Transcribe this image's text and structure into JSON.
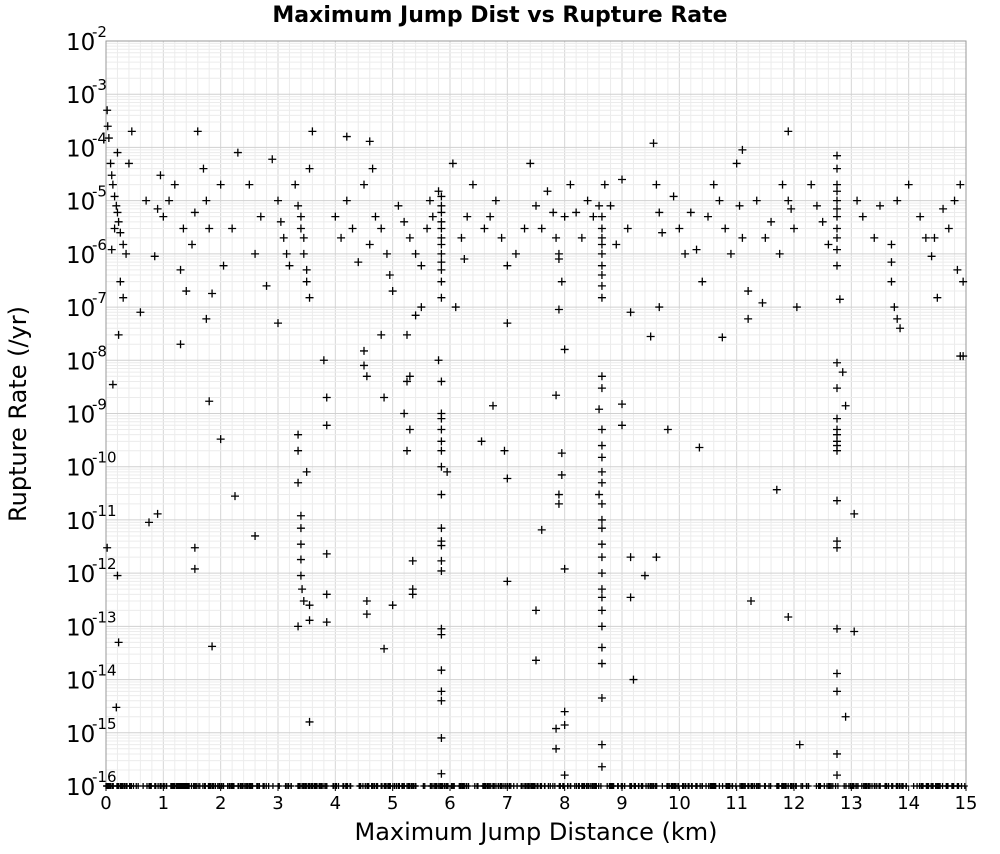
{
  "chart_data": {
    "type": "scatter",
    "title": "Maximum Jump Dist vs Rupture Rate",
    "xlabel": "Maximum Jump Distance (km)",
    "ylabel": "Rupture Rate (/yr)",
    "xlim": [
      0,
      15
    ],
    "ylim": [
      1e-16,
      0.01
    ],
    "yscale": "log",
    "grid": true,
    "marker": "plus",
    "x_ticks": [
      "0",
      "1",
      "2",
      "3",
      "4",
      "5",
      "6",
      "7",
      "8",
      "9",
      "10",
      "11",
      "12",
      "13",
      "14",
      "15"
    ],
    "y_tick_mantissa": "10",
    "y_tick_exponents": [
      "-16",
      "-15",
      "-14",
      "-13",
      "-12",
      "-11",
      "-10",
      "-9",
      "-8",
      "-7",
      "-6",
      "-5",
      "-4",
      "-3",
      "-2"
    ],
    "points": [
      [
        0.02,
        0.0005
      ],
      [
        0.03,
        0.00025
      ],
      [
        0.05,
        0.00015
      ],
      [
        0.08,
        5e-05
      ],
      [
        0.1,
        3e-05
      ],
      [
        0.12,
        2e-05
      ],
      [
        0.15,
        1.2e-05
      ],
      [
        0.18,
        8e-06
      ],
      [
        0.2,
        6e-06
      ],
      [
        0.22,
        4e-06
      ],
      [
        0.25,
        2.5e-06
      ],
      [
        0.3,
        1.5e-06
      ],
      [
        0.35,
        1e-06
      ],
      [
        0.4,
        5e-05
      ],
      [
        0.15,
        3e-06
      ],
      [
        0.1,
        1.2e-06
      ],
      [
        0.2,
        8e-05
      ],
      [
        0.25,
        3e-07
      ],
      [
        0.3,
        1.5e-07
      ],
      [
        0.22,
        3e-08
      ],
      [
        0.12,
        3.5e-09
      ],
      [
        0.2,
        9e-13
      ],
      [
        0.22,
        5e-14
      ],
      [
        0.18,
        3e-15
      ],
      [
        0.02,
        3e-12
      ],
      [
        0.45,
        0.0002
      ],
      [
        0.6,
        8e-08
      ],
      [
        0.7,
        1e-05
      ],
      [
        0.85,
        9e-07
      ],
      [
        0.9,
        7e-06
      ],
      [
        0.95,
        3e-05
      ],
      [
        1.0,
        5e-06
      ],
      [
        1.1,
        1e-05
      ],
      [
        1.2,
        2e-05
      ],
      [
        1.3,
        5e-07
      ],
      [
        1.35,
        3e-06
      ],
      [
        1.4,
        2e-07
      ],
      [
        1.5,
        1.5e-06
      ],
      [
        1.55,
        6e-06
      ],
      [
        1.6,
        0.0002
      ],
      [
        1.7,
        4e-05
      ],
      [
        1.75,
        1e-05
      ],
      [
        1.8,
        3e-06
      ],
      [
        1.85,
        1.8e-07
      ],
      [
        1.75,
        6e-08
      ],
      [
        1.3,
        2e-08
      ],
      [
        1.8,
        1.7e-09
      ],
      [
        2.0,
        3.3e-10
      ],
      [
        2.25,
        2.8e-11
      ],
      [
        2.6,
        5e-12
      ],
      [
        0.75,
        9e-12
      ],
      [
        0.9,
        1.3e-11
      ],
      [
        1.55,
        3e-12
      ],
      [
        1.55,
        1.2e-12
      ],
      [
        1.85,
        4.2e-14
      ],
      [
        2.0,
        2e-05
      ],
      [
        2.05,
        6e-07
      ],
      [
        2.2,
        3e-06
      ],
      [
        2.3,
        8e-05
      ],
      [
        2.5,
        2e-05
      ],
      [
        2.6,
        1e-06
      ],
      [
        2.7,
        5e-06
      ],
      [
        2.8,
        2.5e-07
      ],
      [
        2.9,
        6e-05
      ],
      [
        3.0,
        1e-05
      ],
      [
        3.05,
        4e-06
      ],
      [
        3.1,
        2e-06
      ],
      [
        3.15,
        1e-06
      ],
      [
        3.2,
        6e-07
      ],
      [
        3.3,
        2e-05
      ],
      [
        3.35,
        8e-06
      ],
      [
        3.4,
        5e-06
      ],
      [
        3.4,
        3e-06
      ],
      [
        3.45,
        2e-06
      ],
      [
        3.45,
        1e-06
      ],
      [
        3.5,
        5e-07
      ],
      [
        3.5,
        3e-07
      ],
      [
        3.55,
        1.5e-07
      ],
      [
        3.55,
        4e-05
      ],
      [
        3.6,
        0.0002
      ],
      [
        3.0,
        5e-08
      ],
      [
        3.35,
        4e-10
      ],
      [
        3.35,
        2e-10
      ],
      [
        3.35,
        5e-11
      ],
      [
        3.4,
        1.2e-11
      ],
      [
        3.4,
        7e-12
      ],
      [
        3.4,
        3.5e-12
      ],
      [
        3.4,
        1.8e-12
      ],
      [
        3.4,
        9e-13
      ],
      [
        3.42,
        5e-13
      ],
      [
        3.45,
        3e-13
      ],
      [
        3.35,
        1e-13
      ],
      [
        3.5,
        8e-11
      ],
      [
        3.55,
        2.5e-13
      ],
      [
        3.55,
        1.3e-13
      ],
      [
        3.55,
        1.6e-15
      ],
      [
        3.8,
        1e-08
      ],
      [
        3.85,
        2e-09
      ],
      [
        3.85,
        6e-10
      ],
      [
        3.85,
        2.3e-12
      ],
      [
        3.85,
        4e-13
      ],
      [
        3.85,
        1.2e-13
      ],
      [
        4.0,
        5e-06
      ],
      [
        4.1,
        2e-06
      ],
      [
        4.2,
        1e-05
      ],
      [
        4.3,
        3e-06
      ],
      [
        4.4,
        7e-07
      ],
      [
        4.5,
        2e-05
      ],
      [
        4.6,
        1.5e-06
      ],
      [
        4.7,
        5e-06
      ],
      [
        4.8,
        3e-06
      ],
      [
        4.9,
        1e-06
      ],
      [
        4.95,
        4e-07
      ],
      [
        5.0,
        2e-07
      ],
      [
        4.2,
        0.00016
      ],
      [
        4.6,
        0.00013
      ],
      [
        4.65,
        4e-05
      ],
      [
        4.5,
        1.5e-08
      ],
      [
        4.5,
        8e-09
      ],
      [
        4.55,
        5e-09
      ],
      [
        4.8,
        3e-08
      ],
      [
        4.85,
        2e-09
      ],
      [
        5.0,
        2.5e-13
      ],
      [
        4.55,
        3e-13
      ],
      [
        4.55,
        1.7e-13
      ],
      [
        4.85,
        3.8e-14
      ],
      [
        5.1,
        8e-06
      ],
      [
        5.2,
        4e-06
      ],
      [
        5.3,
        2e-06
      ],
      [
        5.4,
        1e-06
      ],
      [
        5.5,
        6e-07
      ],
      [
        5.6,
        3e-06
      ],
      [
        5.65,
        1e-05
      ],
      [
        5.7,
        5e-06
      ],
      [
        5.2,
        1e-09
      ],
      [
        5.25,
        4e-09
      ],
      [
        5.3,
        5e-09
      ],
      [
        5.25,
        2e-10
      ],
      [
        5.3,
        5e-10
      ],
      [
        5.35,
        1.7e-12
      ],
      [
        5.35,
        5e-13
      ],
      [
        5.35,
        4e-13
      ],
      [
        5.25,
        3e-08
      ],
      [
        5.4,
        7e-08
      ],
      [
        5.5,
        1e-07
      ],
      [
        5.8,
        1.5e-05
      ],
      [
        5.85,
        1.2e-05
      ],
      [
        5.85,
        8e-06
      ],
      [
        5.85,
        6e-06
      ],
      [
        5.85,
        4e-06
      ],
      [
        5.85,
        3e-06
      ],
      [
        5.85,
        2e-06
      ],
      [
        5.85,
        1.5e-06
      ],
      [
        5.85,
        1e-06
      ],
      [
        5.85,
        7e-07
      ],
      [
        5.85,
        5e-07
      ],
      [
        5.85,
        3e-07
      ],
      [
        5.85,
        1.5e-07
      ],
      [
        5.8,
        1e-08
      ],
      [
        5.85,
        4e-09
      ],
      [
        5.85,
        1e-09
      ],
      [
        5.85,
        8e-10
      ],
      [
        5.85,
        5e-10
      ],
      [
        5.85,
        3e-10
      ],
      [
        5.85,
        2e-10
      ],
      [
        5.85,
        1e-10
      ],
      [
        5.85,
        3e-11
      ],
      [
        5.85,
        7e-12
      ],
      [
        5.85,
        4e-12
      ],
      [
        5.85,
        3.3e-12
      ],
      [
        5.85,
        1.7e-12
      ],
      [
        5.85,
        1.1e-12
      ],
      [
        5.85,
        9e-14
      ],
      [
        5.85,
        7e-14
      ],
      [
        5.85,
        1.5e-14
      ],
      [
        5.85,
        6e-15
      ],
      [
        5.85,
        4e-15
      ],
      [
        5.85,
        8e-16
      ],
      [
        5.85,
        1.7e-16
      ],
      [
        5.95,
        8e-11
      ],
      [
        6.05,
        5e-05
      ],
      [
        6.2,
        2e-06
      ],
      [
        6.3,
        5e-06
      ],
      [
        6.4,
        2e-05
      ],
      [
        6.6,
        3e-06
      ],
      [
        6.7,
        5e-06
      ],
      [
        6.8,
        1e-05
      ],
      [
        6.9,
        2e-06
      ],
      [
        7.0,
        6e-07
      ],
      [
        6.1,
        1e-07
      ],
      [
        6.25,
        8e-07
      ],
      [
        7.0,
        5e-08
      ],
      [
        6.55,
        3e-10
      ],
      [
        6.75,
        1.4e-09
      ],
      [
        6.95,
        2e-10
      ],
      [
        7.0,
        6e-11
      ],
      [
        7.0,
        7e-13
      ],
      [
        7.15,
        1e-06
      ],
      [
        7.3,
        3e-06
      ],
      [
        7.4,
        5e-05
      ],
      [
        7.5,
        8e-06
      ],
      [
        7.6,
        3e-06
      ],
      [
        7.7,
        1.5e-05
      ],
      [
        7.8,
        6e-06
      ],
      [
        7.85,
        2e-06
      ],
      [
        7.9,
        1e-06
      ],
      [
        7.95,
        3e-07
      ],
      [
        8.0,
        5e-06
      ],
      [
        7.5,
        2e-13
      ],
      [
        7.5,
        2.3e-14
      ],
      [
        7.6,
        6.5e-12
      ],
      [
        7.85,
        2.2e-09
      ],
      [
        7.9,
        8e-07
      ],
      [
        7.9,
        9e-08
      ],
      [
        7.9,
        3e-11
      ],
      [
        7.9,
        2e-11
      ],
      [
        7.95,
        1.8e-10
      ],
      [
        7.95,
        7e-11
      ],
      [
        8.0,
        1.6e-08
      ],
      [
        8.0,
        1.2e-12
      ],
      [
        8.0,
        2.5e-15
      ],
      [
        8.0,
        1.4e-15
      ],
      [
        7.85,
        1.2e-15
      ],
      [
        7.85,
        5e-16
      ],
      [
        8.0,
        1.6e-16
      ],
      [
        8.1,
        2e-05
      ],
      [
        8.2,
        6e-06
      ],
      [
        8.3,
        2e-06
      ],
      [
        8.4,
        1e-05
      ],
      [
        8.5,
        5e-06
      ],
      [
        8.6,
        8e-06
      ],
      [
        8.65,
        5e-06
      ],
      [
        8.65,
        3e-06
      ],
      [
        8.65,
        2e-06
      ],
      [
        8.65,
        1.5e-06
      ],
      [
        8.65,
        1e-06
      ],
      [
        8.65,
        6e-07
      ],
      [
        8.65,
        4e-07
      ],
      [
        8.65,
        2.5e-07
      ],
      [
        8.65,
        1.5e-07
      ],
      [
        8.65,
        5e-09
      ],
      [
        8.65,
        3e-09
      ],
      [
        8.6,
        1.2e-09
      ],
      [
        8.65,
        2.5e-10
      ],
      [
        8.65,
        1.5e-10
      ],
      [
        8.65,
        5e-10
      ],
      [
        8.65,
        8e-11
      ],
      [
        8.65,
        5e-11
      ],
      [
        8.65,
        2e-11
      ],
      [
        8.65,
        1e-11
      ],
      [
        8.65,
        7e-12
      ],
      [
        8.65,
        3.5e-12
      ],
      [
        8.65,
        2e-12
      ],
      [
        8.65,
        1e-12
      ],
      [
        8.65,
        5e-13
      ],
      [
        8.65,
        3.5e-13
      ],
      [
        8.65,
        2e-13
      ],
      [
        8.65,
        1e-13
      ],
      [
        8.65,
        4e-14
      ],
      [
        8.65,
        2e-14
      ],
      [
        8.65,
        4.5e-15
      ],
      [
        8.65,
        6e-16
      ],
      [
        8.65,
        2.3e-16
      ],
      [
        8.6,
        3e-11
      ],
      [
        8.7,
        2e-05
      ],
      [
        8.8,
        8e-06
      ],
      [
        8.9,
        1.5e-06
      ],
      [
        9.0,
        2.5e-05
      ],
      [
        9.1,
        3e-06
      ],
      [
        9.15,
        8e-08
      ],
      [
        9.0,
        1.5e-09
      ],
      [
        9.0,
        6e-10
      ],
      [
        9.15,
        2e-12
      ],
      [
        9.15,
        3.5e-13
      ],
      [
        9.2,
        1e-14
      ],
      [
        9.4,
        9e-13
      ],
      [
        9.5,
        2.8e-08
      ],
      [
        9.55,
        0.00012
      ],
      [
        9.6,
        2e-05
      ],
      [
        9.65,
        6e-06
      ],
      [
        9.7,
        2.5e-06
      ],
      [
        9.6,
        2e-12
      ],
      [
        9.65,
        1e-07
      ],
      [
        9.8,
        5e-10
      ],
      [
        9.9,
        1.2e-05
      ],
      [
        10.0,
        3e-06
      ],
      [
        10.1,
        1e-06
      ],
      [
        10.2,
        6e-06
      ],
      [
        10.3,
        1.2e-06
      ],
      [
        10.35,
        2.3e-10
      ],
      [
        10.4,
        3e-07
      ],
      [
        10.5,
        5e-06
      ],
      [
        10.6,
        2e-05
      ],
      [
        10.7,
        1e-05
      ],
      [
        10.8,
        3e-06
      ],
      [
        10.9,
        1e-06
      ],
      [
        10.75,
        2.7e-08
      ],
      [
        11.0,
        5e-05
      ],
      [
        11.05,
        8e-06
      ],
      [
        11.1,
        2e-06
      ],
      [
        11.1,
        9e-05
      ],
      [
        11.2,
        2e-07
      ],
      [
        11.2,
        6e-08
      ],
      [
        11.25,
        3e-13
      ],
      [
        11.35,
        1e-05
      ],
      [
        11.45,
        1.2e-07
      ],
      [
        11.5,
        2e-06
      ],
      [
        11.6,
        4e-06
      ],
      [
        11.7,
        3.7e-11
      ],
      [
        11.75,
        1e-06
      ],
      [
        11.8,
        2e-05
      ],
      [
        11.9,
        1e-05
      ],
      [
        11.95,
        7e-06
      ],
      [
        11.9,
        0.0002
      ],
      [
        11.9,
        1.5e-13
      ],
      [
        12.0,
        3e-06
      ],
      [
        12.05,
        1e-07
      ],
      [
        12.1,
        6e-16
      ],
      [
        12.3,
        2e-05
      ],
      [
        12.4,
        8e-06
      ],
      [
        12.5,
        4e-06
      ],
      [
        12.6,
        1.5e-06
      ],
      [
        12.75,
        7e-05
      ],
      [
        12.75,
        4e-05
      ],
      [
        12.75,
        2e-05
      ],
      [
        12.75,
        1.5e-05
      ],
      [
        12.75,
        1e-05
      ],
      [
        12.75,
        7e-06
      ],
      [
        12.75,
        5e-06
      ],
      [
        12.75,
        3e-06
      ],
      [
        12.75,
        2e-06
      ],
      [
        12.75,
        1.2e-06
      ],
      [
        12.75,
        6e-07
      ],
      [
        12.75,
        9e-09
      ],
      [
        12.75,
        3e-09
      ],
      [
        12.8,
        1.4e-07
      ],
      [
        12.75,
        8e-10
      ],
      [
        12.75,
        5e-10
      ],
      [
        12.75,
        4e-10
      ],
      [
        12.75,
        3e-10
      ],
      [
        12.75,
        2.5e-10
      ],
      [
        12.75,
        2e-10
      ],
      [
        12.75,
        2.3e-11
      ],
      [
        12.75,
        4e-12
      ],
      [
        12.75,
        3e-12
      ],
      [
        12.75,
        9e-14
      ],
      [
        12.75,
        1.3e-14
      ],
      [
        12.75,
        6e-15
      ],
      [
        12.75,
        4e-16
      ],
      [
        12.75,
        1.6e-16
      ],
      [
        12.85,
        6e-09
      ],
      [
        12.9,
        1.4e-09
      ],
      [
        12.9,
        2e-15
      ],
      [
        13.05,
        1.3e-11
      ],
      [
        13.05,
        8e-14
      ],
      [
        13.1,
        1e-05
      ],
      [
        13.2,
        5e-06
      ],
      [
        13.4,
        2e-06
      ],
      [
        13.5,
        8e-06
      ],
      [
        13.7,
        1.5e-06
      ],
      [
        13.8,
        1e-05
      ],
      [
        13.7,
        7e-07
      ],
      [
        13.7,
        3e-07
      ],
      [
        13.75,
        1e-07
      ],
      [
        13.8,
        6e-08
      ],
      [
        13.85,
        4e-08
      ],
      [
        14.0,
        2e-05
      ],
      [
        14.2,
        5e-06
      ],
      [
        14.3,
        2e-06
      ],
      [
        14.4,
        9e-07
      ],
      [
        14.45,
        2e-06
      ],
      [
        14.5,
        1.5e-07
      ],
      [
        14.6,
        7e-06
      ],
      [
        14.7,
        3e-06
      ],
      [
        14.8,
        1e-05
      ],
      [
        14.85,
        5e-07
      ],
      [
        14.9,
        2e-05
      ],
      [
        14.95,
        1.2e-08
      ],
      [
        14.9,
        1.2e-08
      ],
      [
        14.95,
        3e-07
      ]
    ],
    "floor_band_value": 1e-16
  }
}
